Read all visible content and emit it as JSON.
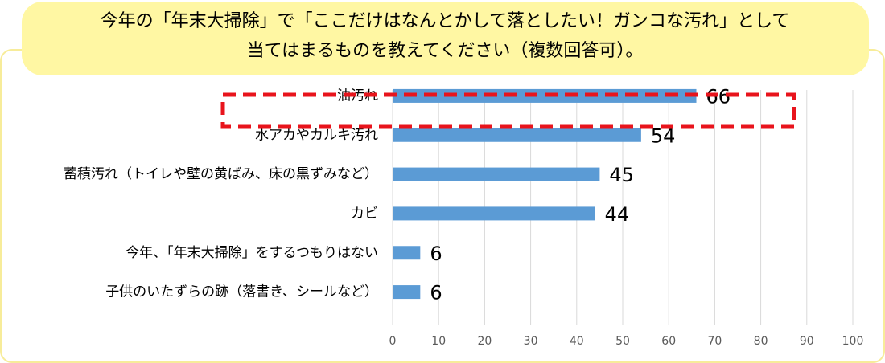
{
  "chart_data": {
    "type": "bar",
    "orientation": "horizontal",
    "title": [
      "今年の「年末大掃除」で「ここだけはなんとかして落としたい！ガンコな汚れ」として",
      "当てはまるものを教えてください（複数回答可）。"
    ],
    "categories": [
      "油汚れ",
      "水アカやカルキ汚れ",
      "蓄積汚れ（トイレや壁の黄ばみ、床の黒ずみなど）",
      "カビ",
      "今年、「年末大掃除」をするつもりはない",
      "子供のいたずらの跡（落書き、シールなど）"
    ],
    "values": [
      66,
      54,
      45,
      44,
      6,
      6
    ],
    "color": "#5b9bd5",
    "xlim": [
      0,
      100
    ],
    "xticks": [
      0,
      10,
      20,
      30,
      40,
      50,
      60,
      70,
      80,
      90,
      100
    ],
    "grid": true
  }
}
